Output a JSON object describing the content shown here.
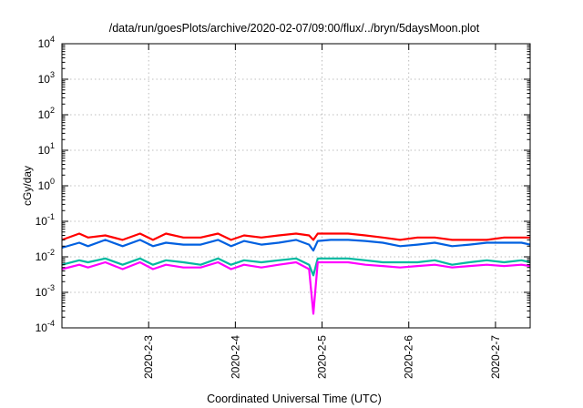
{
  "chart_data": {
    "type": "line",
    "title": "/data/run/goesPlots/archive/2020-02-07/09:00/flux/../bryn/5daysMoon.plot",
    "xlabel": "Coordinated Universal Time (UTC)",
    "ylabel": "cGy/day",
    "y_scale": "log",
    "ylim": [
      0.0001,
      10000
    ],
    "xlim": [
      2.0,
      7.4
    ],
    "x_unit": "day of February 2020",
    "grid": true,
    "legend": "none",
    "y_ticks": [
      {
        "value": 0.0001,
        "base": "10",
        "exp": "-4"
      },
      {
        "value": 0.001,
        "base": "10",
        "exp": "-3"
      },
      {
        "value": 0.01,
        "base": "10",
        "exp": "-2"
      },
      {
        "value": 0.1,
        "base": "10",
        "exp": "-1"
      },
      {
        "value": 1,
        "base": "10",
        "exp": "0"
      },
      {
        "value": 10,
        "base": "10",
        "exp": "1"
      },
      {
        "value": 100,
        "base": "10",
        "exp": "2"
      },
      {
        "value": 1000,
        "base": "10",
        "exp": "3"
      },
      {
        "value": 10000,
        "base": "10",
        "exp": "4"
      }
    ],
    "x_ticks": [
      {
        "value": 3,
        "label": "2020-2-3"
      },
      {
        "value": 4,
        "label": "2020-2-4"
      },
      {
        "value": 5,
        "label": "2020-2-5"
      },
      {
        "value": 6,
        "label": "2020-2-6"
      },
      {
        "value": 7,
        "label": "2020-2-7"
      }
    ],
    "series": [
      {
        "color": "#ff0000",
        "x": [
          2.0,
          2.2,
          2.3,
          2.5,
          2.7,
          2.9,
          3.05,
          3.2,
          3.4,
          3.6,
          3.8,
          3.95,
          4.1,
          4.3,
          4.5,
          4.7,
          4.85,
          4.9,
          4.95,
          5.1,
          5.3,
          5.5,
          5.7,
          5.9,
          6.1,
          6.3,
          6.5,
          6.7,
          6.9,
          7.1,
          7.3,
          7.4
        ],
        "y": [
          0.03,
          0.045,
          0.035,
          0.04,
          0.03,
          0.045,
          0.03,
          0.045,
          0.035,
          0.035,
          0.045,
          0.03,
          0.04,
          0.035,
          0.04,
          0.045,
          0.04,
          0.03,
          0.045,
          0.045,
          0.045,
          0.04,
          0.035,
          0.03,
          0.035,
          0.035,
          0.03,
          0.03,
          0.03,
          0.035,
          0.035,
          0.035
        ]
      },
      {
        "color": "#0060e0",
        "x": [
          2.0,
          2.2,
          2.3,
          2.5,
          2.7,
          2.9,
          3.05,
          3.2,
          3.4,
          3.6,
          3.8,
          3.95,
          4.1,
          4.3,
          4.5,
          4.7,
          4.85,
          4.9,
          4.95,
          5.1,
          5.3,
          5.5,
          5.7,
          5.9,
          6.1,
          6.3,
          6.5,
          6.7,
          6.9,
          7.1,
          7.3,
          7.4
        ],
        "y": [
          0.018,
          0.025,
          0.02,
          0.03,
          0.02,
          0.03,
          0.02,
          0.025,
          0.022,
          0.022,
          0.03,
          0.02,
          0.028,
          0.022,
          0.025,
          0.03,
          0.022,
          0.015,
          0.028,
          0.03,
          0.03,
          0.028,
          0.025,
          0.02,
          0.022,
          0.025,
          0.02,
          0.022,
          0.025,
          0.025,
          0.025,
          0.022
        ]
      },
      {
        "color": "#00b8a0",
        "x": [
          2.0,
          2.2,
          2.3,
          2.5,
          2.7,
          2.9,
          3.05,
          3.2,
          3.4,
          3.6,
          3.8,
          3.95,
          4.1,
          4.3,
          4.5,
          4.7,
          4.85,
          4.9,
          4.95,
          5.1,
          5.3,
          5.5,
          5.7,
          5.9,
          6.1,
          6.3,
          6.5,
          6.7,
          6.9,
          7.1,
          7.3,
          7.4
        ],
        "y": [
          0.006,
          0.008,
          0.007,
          0.009,
          0.006,
          0.009,
          0.006,
          0.008,
          0.007,
          0.006,
          0.009,
          0.006,
          0.008,
          0.007,
          0.008,
          0.009,
          0.006,
          0.003,
          0.009,
          0.009,
          0.009,
          0.008,
          0.007,
          0.007,
          0.007,
          0.008,
          0.006,
          0.007,
          0.008,
          0.007,
          0.008,
          0.007
        ]
      },
      {
        "color": "#ff00ff",
        "x": [
          2.0,
          2.2,
          2.3,
          2.5,
          2.7,
          2.9,
          3.05,
          3.2,
          3.4,
          3.6,
          3.8,
          3.95,
          4.1,
          4.3,
          4.5,
          4.7,
          4.85,
          4.9,
          4.95,
          5.1,
          5.3,
          5.5,
          5.7,
          5.9,
          6.1,
          6.3,
          6.5,
          6.7,
          6.9,
          7.1,
          7.3,
          7.4
        ],
        "y": [
          0.0045,
          0.006,
          0.005,
          0.007,
          0.0045,
          0.007,
          0.0045,
          0.006,
          0.005,
          0.005,
          0.007,
          0.0045,
          0.006,
          0.005,
          0.006,
          0.007,
          0.0045,
          0.00025,
          0.007,
          0.007,
          0.007,
          0.006,
          0.0055,
          0.005,
          0.0055,
          0.006,
          0.005,
          0.0055,
          0.006,
          0.0055,
          0.006,
          0.0055
        ]
      }
    ]
  }
}
